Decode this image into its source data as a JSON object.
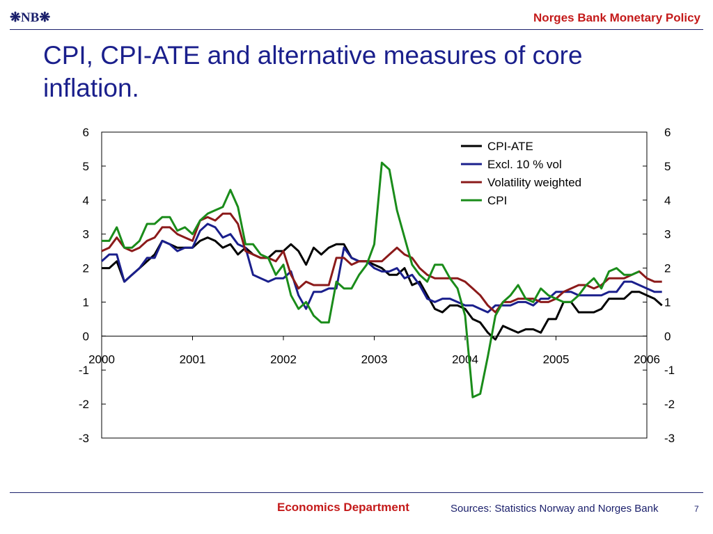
{
  "header": {
    "logo": "❋NB❋",
    "title": "Norges Bank Monetary Policy"
  },
  "slide": {
    "title": "CPI, CPI-ATE and alternative measures of core inflation."
  },
  "footer": {
    "department": "Economics Department",
    "sources": "Sources: Statistics Norway and Norges Bank",
    "page": "7"
  },
  "chart_data": {
    "type": "line",
    "title": "",
    "xlabel": "",
    "ylabel": "",
    "xlim": [
      2000.0,
      2006.0
    ],
    "ylim": [
      -3,
      6
    ],
    "xticks": [
      "2000",
      "2001",
      "2002",
      "2003",
      "2004",
      "2005",
      "2006"
    ],
    "yticks_left": [
      "6",
      "5",
      "4",
      "3",
      "2",
      "1",
      "0",
      "-1",
      "-2",
      "-3"
    ],
    "yticks_right": [
      "6",
      "5",
      "4",
      "3",
      "2",
      "1",
      "0",
      "-1",
      "-2",
      "-3"
    ],
    "legend_position": "top-right",
    "grid": false,
    "x_start": 2000.0,
    "x_step": 0.083333,
    "series": [
      {
        "name": "CPI-ATE",
        "color": "#000000",
        "values": [
          2.0,
          2.0,
          2.2,
          1.6,
          1.8,
          2.0,
          2.2,
          2.4,
          2.8,
          2.7,
          2.6,
          2.6,
          2.6,
          2.8,
          2.9,
          2.8,
          2.6,
          2.7,
          2.4,
          2.6,
          2.4,
          2.3,
          2.3,
          2.5,
          2.5,
          2.7,
          2.5,
          2.1,
          2.6,
          2.4,
          2.6,
          2.7,
          2.7,
          2.3,
          2.2,
          2.2,
          2.1,
          2.0,
          1.8,
          1.8,
          2.0,
          1.5,
          1.6,
          1.2,
          0.8,
          0.7,
          0.9,
          0.9,
          0.8,
          0.5,
          0.4,
          0.1,
          -0.1,
          0.3,
          0.2,
          0.1,
          0.2,
          0.2,
          0.1,
          0.5,
          0.5,
          1.0,
          1.0,
          0.7,
          0.7,
          0.7,
          0.8,
          1.1,
          1.1,
          1.1,
          1.3,
          1.3,
          1.2,
          1.1,
          0.9
        ]
      },
      {
        "name": "Excl. 10 % vol",
        "color": "#1a1f8c",
        "values": [
          2.2,
          2.4,
          2.4,
          1.6,
          1.8,
          2.0,
          2.3,
          2.3,
          2.8,
          2.7,
          2.5,
          2.6,
          2.6,
          3.1,
          3.3,
          3.2,
          2.9,
          3.0,
          2.7,
          2.6,
          1.8,
          1.7,
          1.6,
          1.7,
          1.7,
          1.9,
          1.2,
          0.8,
          1.3,
          1.3,
          1.4,
          1.4,
          2.6,
          2.3,
          2.2,
          2.2,
          2.0,
          1.9,
          1.9,
          2.0,
          1.7,
          1.8,
          1.5,
          1.1,
          1.0,
          1.1,
          1.1,
          1.0,
          0.9,
          0.9,
          0.8,
          0.7,
          0.9,
          0.9,
          0.9,
          1.0,
          1.0,
          0.9,
          1.1,
          1.1,
          1.3,
          1.3,
          1.3,
          1.2,
          1.2,
          1.2,
          1.2,
          1.3,
          1.3,
          1.6,
          1.6,
          1.5,
          1.4,
          1.3,
          1.3
        ]
      },
      {
        "name": "Volatility weighted",
        "color": "#8b1a1a",
        "values": [
          2.5,
          2.6,
          2.9,
          2.6,
          2.5,
          2.6,
          2.8,
          2.9,
          3.2,
          3.2,
          3.0,
          2.9,
          2.8,
          3.4,
          3.5,
          3.4,
          3.6,
          3.6,
          3.3,
          2.5,
          2.4,
          2.3,
          2.3,
          2.2,
          2.5,
          1.8,
          1.4,
          1.6,
          1.5,
          1.5,
          1.5,
          2.3,
          2.3,
          2.1,
          2.2,
          2.2,
          2.2,
          2.2,
          2.4,
          2.6,
          2.4,
          2.3,
          2.0,
          1.8,
          1.7,
          1.7,
          1.7,
          1.7,
          1.6,
          1.4,
          1.2,
          0.9,
          0.7,
          1.0,
          1.0,
          1.1,
          1.1,
          1.1,
          1.0,
          1.0,
          1.1,
          1.3,
          1.4,
          1.5,
          1.5,
          1.4,
          1.5,
          1.7,
          1.7,
          1.7,
          1.8,
          1.9,
          1.7,
          1.6,
          1.6
        ]
      },
      {
        "name": "CPI",
        "color": "#1a8c1a",
        "values": [
          2.8,
          2.8,
          3.2,
          2.6,
          2.6,
          2.8,
          3.3,
          3.3,
          3.5,
          3.5,
          3.1,
          3.2,
          3.0,
          3.4,
          3.6,
          3.7,
          3.8,
          4.3,
          3.8,
          2.7,
          2.7,
          2.4,
          2.3,
          1.8,
          2.1,
          1.2,
          0.8,
          1.0,
          0.6,
          0.4,
          0.4,
          1.6,
          1.4,
          1.4,
          1.8,
          2.1,
          2.7,
          5.1,
          4.9,
          3.7,
          2.9,
          2.1,
          1.8,
          1.6,
          2.1,
          2.1,
          1.7,
          1.4,
          0.6,
          -1.8,
          -1.7,
          -0.6,
          0.6,
          1.0,
          1.2,
          1.5,
          1.1,
          1.0,
          1.4,
          1.2,
          1.1,
          1.0,
          1.0,
          1.2,
          1.5,
          1.7,
          1.4,
          1.9,
          2.0,
          1.8,
          1.8,
          1.9
        ]
      }
    ]
  }
}
